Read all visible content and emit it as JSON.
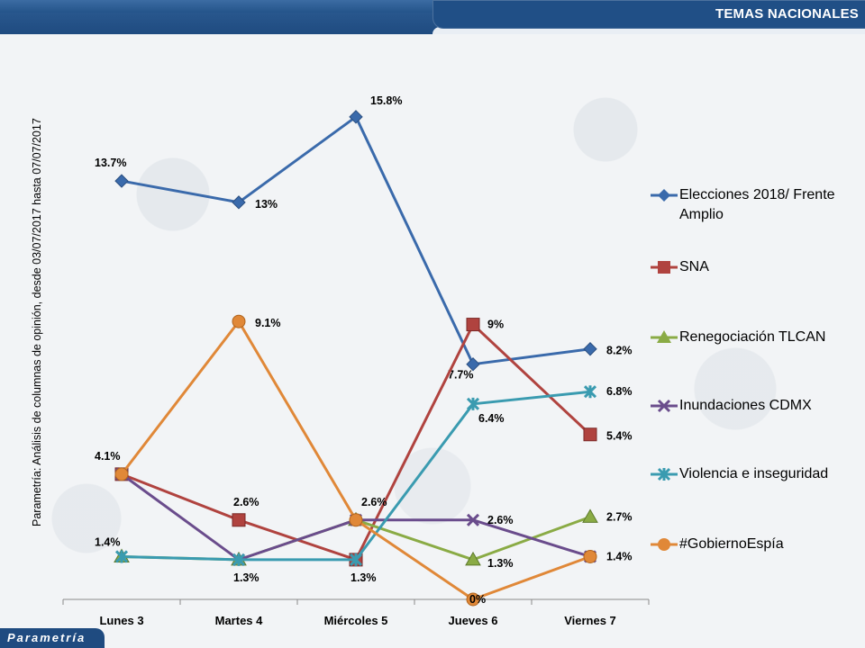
{
  "header": {
    "title": "TEMAS NACIONALES"
  },
  "source_note": "Parametría: Análisis de columnas de opinión, desde 03/07/2017 hasta 07/07/2017",
  "brand": "Parametría",
  "chart_data": {
    "type": "line",
    "categories": [
      "Lunes 3",
      "Martes 4",
      "Miércoles 5",
      "Jueves 6",
      "Viernes 7"
    ],
    "ylim": [
      0,
      17
    ],
    "grid": false,
    "legend_position": "right",
    "series": [
      {
        "name": "Elecciones 2018/ Frente Amplio",
        "color": "#3a6aab",
        "marker": "diamond",
        "values": [
          13.7,
          13.0,
          15.8,
          7.7,
          8.2
        ],
        "labels": [
          "13.7%",
          "13%",
          "15.8%",
          "7.7%",
          "8.2%"
        ]
      },
      {
        "name": "SNA",
        "color": "#b0433f",
        "marker": "square",
        "values": [
          4.1,
          2.6,
          1.3,
          9.0,
          5.4
        ],
        "labels": [
          "4.1%",
          "2.6%",
          "",
          "9%",
          "5.4%"
        ]
      },
      {
        "name": "Renegociación TLCAN",
        "color": "#8aab45",
        "marker": "triangle",
        "values": [
          1.4,
          1.3,
          2.6,
          1.3,
          2.7
        ],
        "labels": [
          "",
          "",
          "",
          "1.3%",
          "2.7%"
        ]
      },
      {
        "name": "Inundaciones CDMX",
        "color": "#6a4c8c",
        "marker": "x",
        "values": [
          4.1,
          1.3,
          2.6,
          2.6,
          1.4
        ],
        "labels": [
          "",
          "",
          "",
          "2.6%",
          ""
        ]
      },
      {
        "name": "Violencia e inseguridad",
        "color": "#3a9bb0",
        "marker": "star",
        "values": [
          1.4,
          1.3,
          1.3,
          6.4,
          6.8
        ],
        "labels": [
          "1.4%",
          "1.3%",
          "1.3%",
          "6.4%",
          "6.8%"
        ]
      },
      {
        "name": "#GobiernoEspía",
        "color": "#e08838",
        "marker": "circle",
        "values": [
          4.1,
          9.1,
          2.6,
          0.0,
          1.4
        ],
        "labels": [
          "",
          "9.1%",
          "2.6%",
          "0%",
          "1.4%"
        ]
      }
    ]
  }
}
